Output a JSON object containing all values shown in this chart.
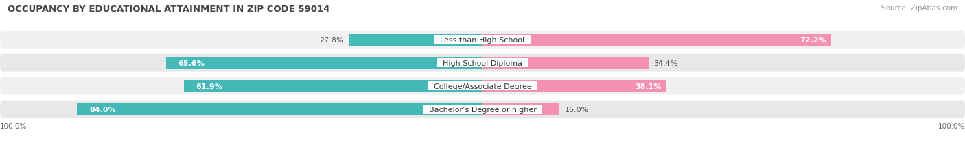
{
  "title": "OCCUPANCY BY EDUCATIONAL ATTAINMENT IN ZIP CODE 59014",
  "source": "Source: ZipAtlas.com",
  "categories": [
    "Less than High School",
    "High School Diploma",
    "College/Associate Degree",
    "Bachelor’s Degree or higher"
  ],
  "owner_values": [
    27.8,
    65.6,
    61.9,
    84.0
  ],
  "renter_values": [
    72.2,
    34.4,
    38.1,
    16.0
  ],
  "owner_color": "#45b8b8",
  "renter_color": "#f490b0",
  "row_bg_color_odd": "#f0f0f0",
  "row_bg_color_even": "#e8e8e8",
  "axis_label_left": "100.0%",
  "axis_label_right": "100.0%",
  "title_fontsize": 9.5,
  "label_fontsize": 8.0,
  "value_fontsize": 8.0,
  "tick_fontsize": 7.5,
  "source_fontsize": 7.5,
  "background_color": "#ffffff"
}
